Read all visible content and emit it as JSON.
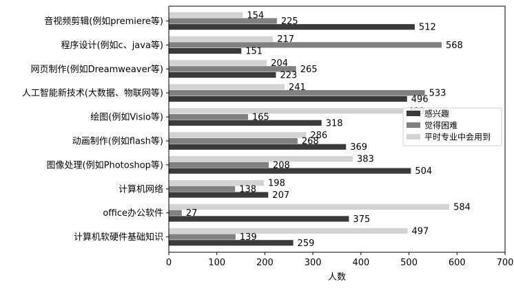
{
  "chart_data": {
    "type": "bar",
    "orientation": "horizontal",
    "title": "",
    "xlabel": "人数",
    "ylabel": "",
    "xlim": [
      0,
      700
    ],
    "xticks": [
      0,
      100,
      200,
      300,
      400,
      500,
      600,
      700
    ],
    "grid": false,
    "legend_position": "right",
    "categories": [
      "音视频剪辑(例如premiere等)",
      "程序设计(例如c、java等)",
      "网页制作(例如Dreamweaver等)",
      "人工智能新技术(大数据、物联网等)",
      "绘图(例如Visio等)",
      "动画制作(例如flash等)",
      "图像处理(例如Photoshop等)",
      "计算机网络",
      "office办公软件",
      "计算机软硬件基础知识"
    ],
    "series": [
      {
        "name": "感兴趣",
        "color": "#3a3a3a",
        "values": [
          512,
          151,
          223,
          496,
          318,
          369,
          504,
          207,
          375,
          259
        ]
      },
      {
        "name": "觉得困难",
        "color": "#808080",
        "values": [
          225,
          568,
          265,
          533,
          165,
          268,
          208,
          138,
          27,
          139
        ]
      },
      {
        "name": "平时专业中会用到",
        "color": "#d3d3d3",
        "values": [
          154,
          217,
          204,
          241,
          489,
          286,
          383,
          198,
          584,
          497
        ]
      }
    ]
  }
}
